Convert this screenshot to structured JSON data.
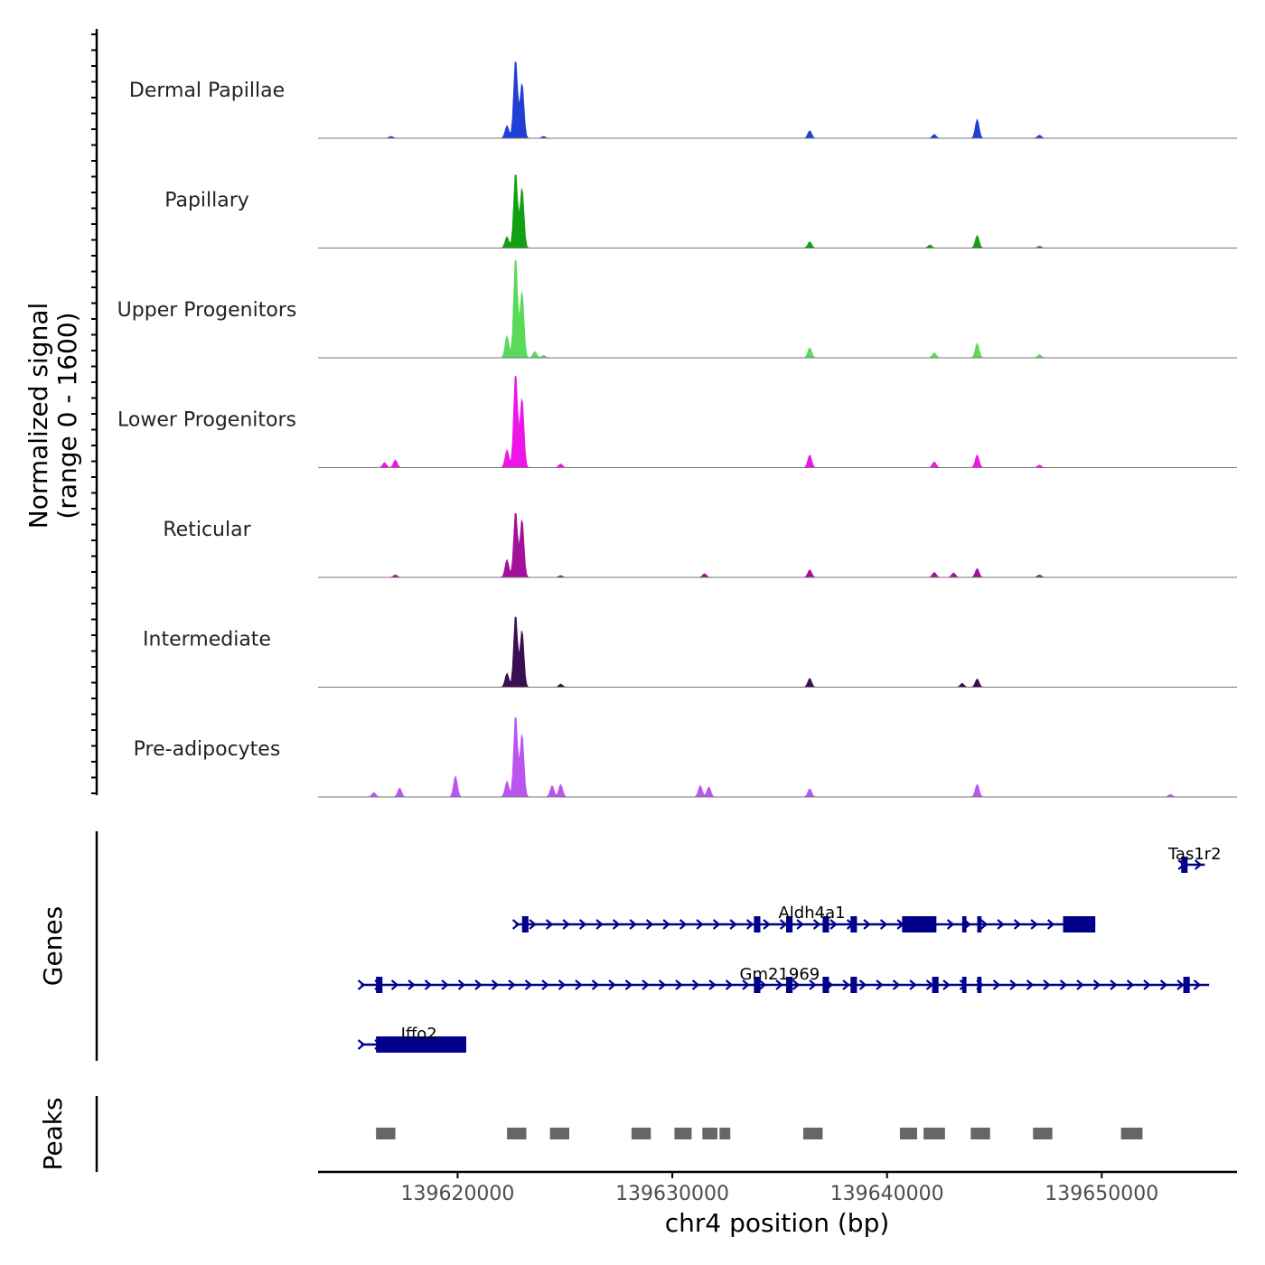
{
  "chart_data": {
    "type": "area",
    "title": "",
    "chromosome": "chr4",
    "xlabel": "chr4 position (bp)",
    "xlim": [
      139613500,
      139656300
    ],
    "xticks": [
      139620000,
      139630000,
      139640000,
      139650000
    ],
    "xtick_labels": [
      "139620000",
      "139630000",
      "139640000",
      "139650000"
    ],
    "signal_axis_label_line1": "Normalized signal",
    "signal_axis_label_line2": "(range 0 - 1600)",
    "ylim": [
      0,
      1600
    ],
    "tracks": [
      {
        "name": "Dermal Papillae",
        "color": "#1f3fd6",
        "peaks": [
          [
            139616900,
            30
          ],
          [
            139622300,
            200
          ],
          [
            139622700,
            1250
          ],
          [
            139623000,
            870
          ],
          [
            139624000,
            30
          ],
          [
            139636400,
            120
          ],
          [
            139642200,
            60
          ],
          [
            139644200,
            300
          ],
          [
            139647100,
            50
          ]
        ]
      },
      {
        "name": "Papillary",
        "color": "#13a013",
        "peaks": [
          [
            139622300,
            180
          ],
          [
            139622700,
            1200
          ],
          [
            139623000,
            950
          ],
          [
            139636400,
            100
          ],
          [
            139642000,
            50
          ],
          [
            139644200,
            200
          ],
          [
            139647100,
            30
          ]
        ]
      },
      {
        "name": "Upper Progenitors",
        "color": "#5ada5a",
        "peaks": [
          [
            139622300,
            350
          ],
          [
            139622700,
            1600
          ],
          [
            139623000,
            1050
          ],
          [
            139623600,
            100
          ],
          [
            139624000,
            40
          ],
          [
            139636400,
            160
          ],
          [
            139642200,
            80
          ],
          [
            139644200,
            230
          ],
          [
            139647100,
            50
          ]
        ]
      },
      {
        "name": "Lower Progenitors",
        "color": "#ee16e6",
        "peaks": [
          [
            139616600,
            80
          ],
          [
            139617100,
            120
          ],
          [
            139622300,
            280
          ],
          [
            139622700,
            1500
          ],
          [
            139623000,
            1100
          ],
          [
            139624800,
            60
          ],
          [
            139636400,
            200
          ],
          [
            139642200,
            90
          ],
          [
            139644200,
            200
          ],
          [
            139647100,
            40
          ]
        ]
      },
      {
        "name": "Reticular",
        "color": "#a2119a",
        "peaks": [
          [
            139617100,
            40
          ],
          [
            139622300,
            280
          ],
          [
            139622700,
            1050
          ],
          [
            139623000,
            920
          ],
          [
            139624800,
            30
          ],
          [
            139631500,
            60
          ],
          [
            139636400,
            120
          ],
          [
            139642200,
            80
          ],
          [
            139643100,
            70
          ],
          [
            139644200,
            140
          ],
          [
            139647100,
            40
          ]
        ]
      },
      {
        "name": "Intermediate",
        "color": "#3a0f52",
        "peaks": [
          [
            139622300,
            220
          ],
          [
            139622700,
            1150
          ],
          [
            139623000,
            900
          ],
          [
            139624800,
            50
          ],
          [
            139636400,
            140
          ],
          [
            139643500,
            60
          ],
          [
            139644200,
            130
          ]
        ]
      },
      {
        "name": "Pre-adipocytes",
        "color": "#bb55f0",
        "peaks": [
          [
            139616100,
            70
          ],
          [
            139617300,
            140
          ],
          [
            139619900,
            330
          ],
          [
            139622300,
            250
          ],
          [
            139622700,
            1300
          ],
          [
            139623000,
            1000
          ],
          [
            139624400,
            180
          ],
          [
            139624800,
            200
          ],
          [
            139631300,
            180
          ],
          [
            139631700,
            160
          ],
          [
            139636400,
            130
          ],
          [
            139644200,
            200
          ],
          [
            139653200,
            40
          ]
        ]
      }
    ],
    "genes_label": "Genes",
    "genes": [
      {
        "name": "Tas1r2",
        "row": 0,
        "start": 139653700,
        "end": 139654800,
        "color": "#00008b",
        "exons": [
          [
            139653700,
            139654000
          ]
        ]
      },
      {
        "name": "Aldh4a1",
        "row": 1,
        "start": 139622700,
        "end": 139649700,
        "color": "#00008b",
        "exons": [
          [
            139623000,
            139623300
          ],
          [
            139633800,
            139634100
          ],
          [
            139635300,
            139635600
          ],
          [
            139637000,
            139637300
          ],
          [
            139638300,
            139638600
          ],
          [
            139640700,
            139642300
          ],
          [
            139643500,
            139643700
          ],
          [
            139644200,
            139644400
          ],
          [
            139648200,
            139649700
          ]
        ]
      },
      {
        "name": "Gm21969",
        "row": 2,
        "start": 139615500,
        "end": 139655000,
        "color": "#00008b",
        "exons": [
          [
            139616200,
            139616500
          ],
          [
            139633800,
            139634100
          ],
          [
            139635300,
            139635600
          ],
          [
            139637000,
            139637300
          ],
          [
            139638300,
            139638600
          ],
          [
            139642100,
            139642400
          ],
          [
            139643500,
            139643700
          ],
          [
            139644200,
            139644400
          ],
          [
            139653800,
            139654100
          ]
        ]
      },
      {
        "name": "Iffo2",
        "row": 3,
        "start": 139615500,
        "end": 139620400,
        "color": "#00008b",
        "exons": [
          [
            139616200,
            139620400
          ]
        ]
      }
    ],
    "peaks_label": "Peaks",
    "peak_color": "#666666",
    "peak_regions": [
      [
        139616200,
        139617100
      ],
      [
        139622300,
        139623200
      ],
      [
        139624300,
        139625200
      ],
      [
        139628100,
        139629000
      ],
      [
        139630100,
        139630900
      ],
      [
        139631400,
        139632100
      ],
      [
        139632200,
        139632700
      ],
      [
        139636100,
        139637000
      ],
      [
        139640600,
        139641400
      ],
      [
        139641700,
        139642700
      ],
      [
        139643900,
        139644800
      ],
      [
        139646800,
        139647700
      ],
      [
        139650900,
        139651900
      ]
    ]
  }
}
